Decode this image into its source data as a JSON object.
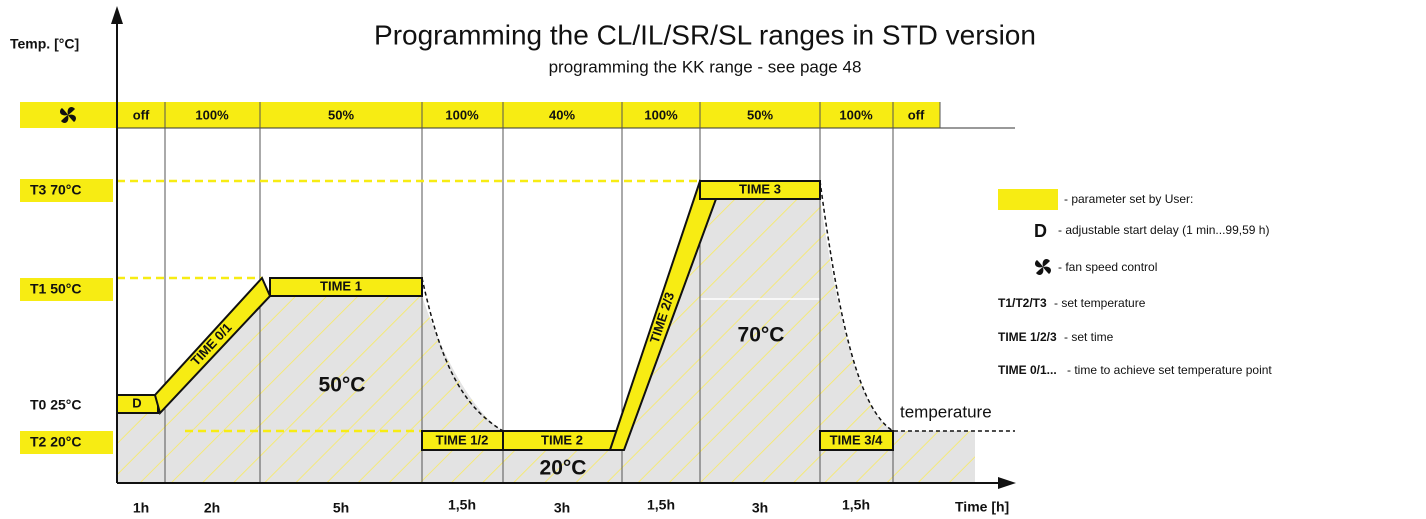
{
  "title": "Programming the CL/IL/SR/SL ranges in STD version",
  "subtitle": "programming the KK range - see page 48",
  "y_axis_label": "Temp. [°C]",
  "x_axis_label": "Time [h]",
  "fan_row": [
    "off",
    "100%",
    "50%",
    "100%",
    "40%",
    "100%",
    "50%",
    "100%",
    "off"
  ],
  "temperature_levels": [
    "T3 70°C",
    "T1 50°C",
    "T0 25°C",
    "T2 20°C"
  ],
  "segments": [
    "D",
    "TIME 0/1",
    "TIME 1",
    "TIME 1/2",
    "TIME 2",
    "TIME 2/3",
    "TIME 3",
    "TIME 3/4"
  ],
  "zone_labels": [
    "50°C",
    "20°C",
    "70°C"
  ],
  "curve_label": "temperature",
  "durations": [
    "1h",
    "2h",
    "5h",
    "1,5h",
    "3h",
    "1,5h",
    "3h",
    "1,5h"
  ],
  "legend": {
    "parameter": "- parameter set by User:",
    "items": [
      {
        "key": "D",
        "text": "- adjustable start delay  (1 min...99,59 h)"
      },
      {
        "text": "- fan speed control"
      },
      {
        "key": "T1/T2/T3",
        "text": " - set temperature"
      },
      {
        "key": "TIME 1/2/3",
        "text": " - set time"
      },
      {
        "key": "TIME 0/1...",
        "text": " - time to achieve set temperature point"
      }
    ]
  }
}
